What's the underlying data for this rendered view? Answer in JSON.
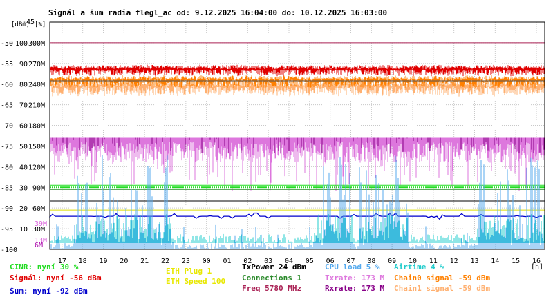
{
  "title": "Signál a šum radia flegl_ac od: 9.12.2025 16:04:00 do: 10.12.2025 16:03:00",
  "unit_dbm": "[dBm]",
  "unit_pct": "[%]",
  "hour_unit": "[h]",
  "colors": {
    "signal": "#e00000",
    "noise": "#0000cc",
    "chain0": "#ff8000",
    "chain1": "#ffb070",
    "txrate": "#dd77dd",
    "rxrate": "#880088",
    "cpu": "#55aaee",
    "airtime": "#22cccc",
    "cinr": "#22dd22",
    "eth": "#dddd00",
    "connections": "#2a8a2a",
    "freq": "#aa2255"
  },
  "chart_data": {
    "type": "line",
    "title": "Signál a šum radia flegl_ac od: 9.12.2025 16:04:00 do: 10.12.2025 16:03:00",
    "x_tick_labels": [
      "17",
      "18",
      "19",
      "20",
      "21",
      "22",
      "23",
      "00",
      "01",
      "02",
      "03",
      "04",
      "05",
      "06",
      "07",
      "08",
      "09",
      "10",
      "11",
      "12",
      "13",
      "14",
      "15",
      "16"
    ],
    "y_dbm_labels": [
      "-45",
      "-50",
      "-55",
      "-60",
      "-65",
      "-70",
      "-75",
      "-80",
      "-85",
      "-90",
      "-95",
      "-100"
    ],
    "y_pct_labels": [
      "100",
      "90",
      "80",
      "70",
      "60",
      "50",
      "40",
      "30",
      "20",
      "10"
    ],
    "y_rate_labels": [
      "300M",
      "270M",
      "240M",
      "210M",
      "180M",
      "150M",
      "120M",
      "90M",
      "60M",
      "30M"
    ],
    "inner_marks": [
      "39M",
      "13M",
      "6M"
    ],
    "ylim_dbm": [
      -100,
      -45
    ],
    "ylim_pct": [
      0,
      100
    ],
    "ylim_rate": [
      0,
      300
    ],
    "reference_lines": [
      {
        "series": "signal_max",
        "value": -50
      },
      {
        "series": "signal_avg",
        "value": -56
      },
      {
        "series": "chain_avg",
        "value": -59
      },
      {
        "series": "cinr",
        "value": -85
      },
      {
        "series": "noise_avg",
        "value": -92
      }
    ],
    "series": [
      {
        "name": "Signál",
        "unit": "dBm",
        "approx_level": -56
      },
      {
        "name": "Chain0 signal",
        "unit": "dBm",
        "approx_level": -59
      },
      {
        "name": "Chain1 signal",
        "unit": "dBm",
        "approx_level": -60
      },
      {
        "name": "Šum",
        "unit": "dBm",
        "approx_level": -92
      },
      {
        "name": "CINR",
        "unit": "%",
        "approx_level": 30
      },
      {
        "name": "Txrate",
        "unit": "Mbps",
        "approx_level": 173
      },
      {
        "name": "Rxrate",
        "unit": "Mbps",
        "approx_level": 173
      },
      {
        "name": "CPU load",
        "unit": "%",
        "approx_level": 5
      },
      {
        "name": "Airtime",
        "unit": "%",
        "approx_level": 4
      }
    ]
  },
  "legend": {
    "cinr": "CINR: nyní 30 %",
    "signal": "Signál: nyní -56 dBm",
    "noise": "Šum: nyní -92 dBm",
    "eth_plug": "ETH Plug 1",
    "eth_speed": "ETH Speed 100",
    "txpower": "TxPower 24 dBm",
    "connections": "Connections 1",
    "freq": "Freq 5780 MHz",
    "cpu": "CPU load 5 %",
    "txrate": "Txrate: 173 M",
    "rxrate": "Rxrate: 173 M",
    "airtime": "Airtime 4 %",
    "chain0": "Chain0 signal -59 dBm",
    "chain1": "Chain1 signal -59 dBm"
  }
}
